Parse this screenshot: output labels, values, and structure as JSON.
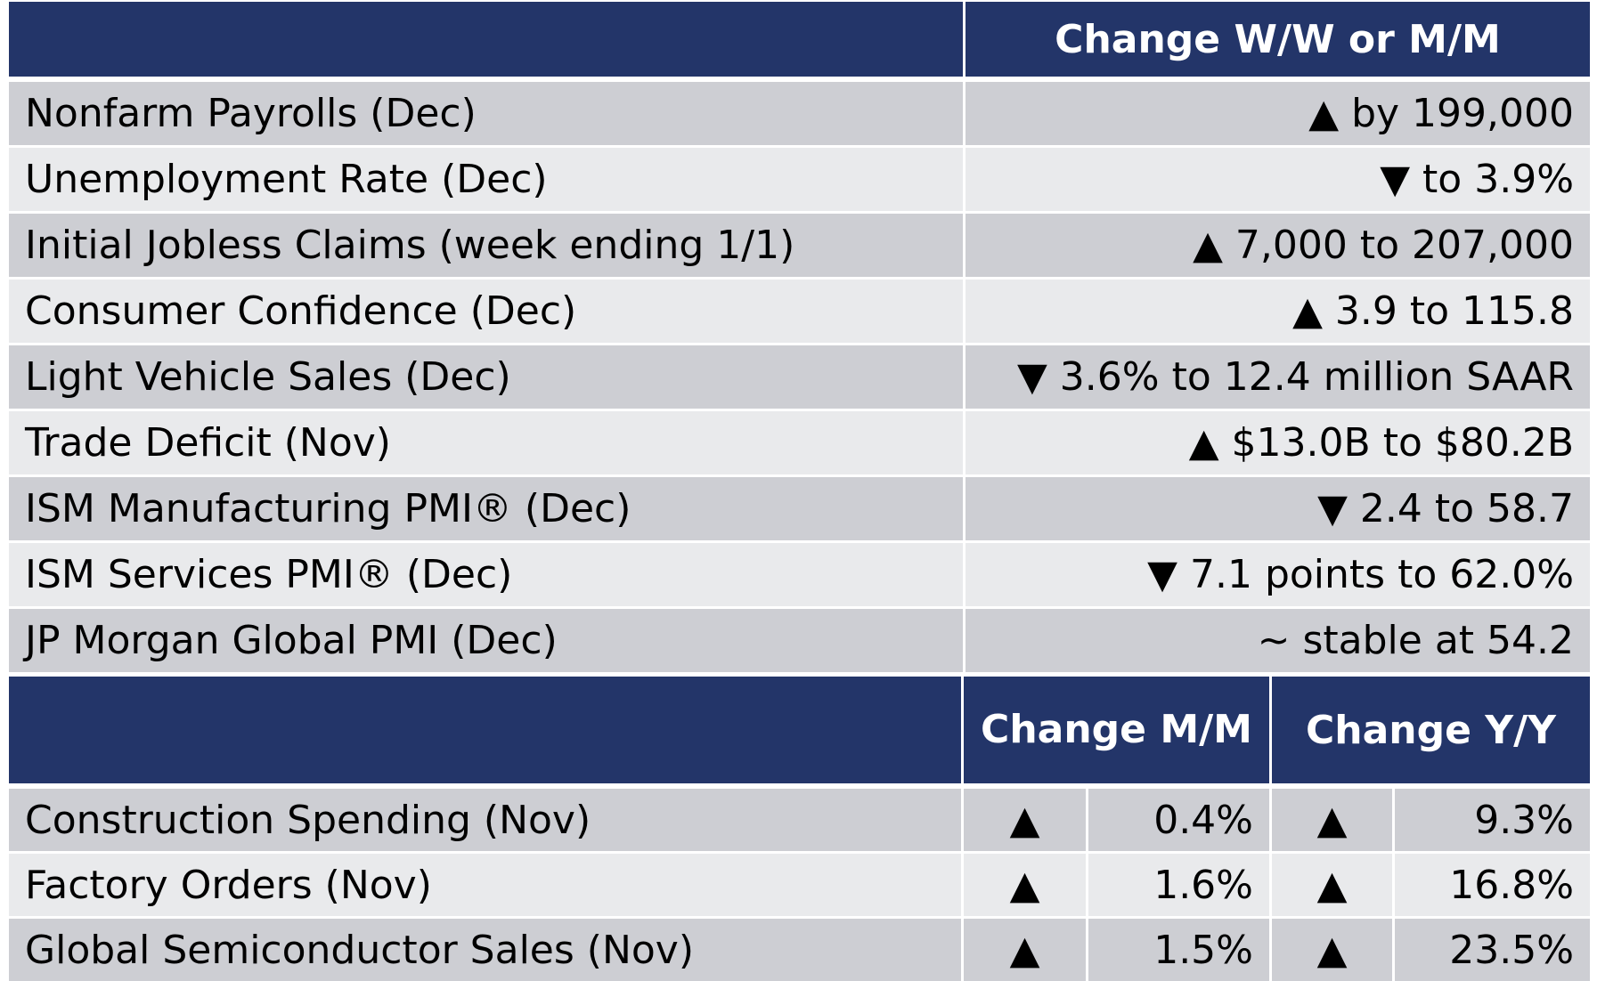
{
  "colors": {
    "header": "#233569",
    "row_dark": "#cdced3",
    "row_light": "#e9eaec"
  },
  "table1": {
    "header": "Change W/W or M/M",
    "rows": [
      {
        "label": "Nonfarm Payrolls (Dec)",
        "value": "▲ by 199,000"
      },
      {
        "label": "Unemployment Rate (Dec)",
        "value": "▼ to 3.9%"
      },
      {
        "label": "Initial Jobless Claims (week ending 1/1)",
        "value": "▲ 7,000 to 207,000"
      },
      {
        "label": "Consumer Confidence (Dec)",
        "value": "▲ 3.9 to 115.8"
      },
      {
        "label": "Light Vehicle Sales (Dec)",
        "value": "▼ 3.6% to 12.4 million SAAR"
      },
      {
        "label": "Trade Deficit (Nov)",
        "value": "▲ $13.0B to $80.2B"
      },
      {
        "label": "ISM Manufacturing PMI® (Dec)",
        "value": "▼ 2.4 to 58.7"
      },
      {
        "label": "ISM Services PMI® (Dec)",
        "value": "▼ 7.1 points to 62.0%"
      },
      {
        "label": "JP Morgan Global PMI (Dec)",
        "value": "~ stable at 54.2"
      }
    ]
  },
  "table2": {
    "header_mm": "Change M/M",
    "header_yy": "Change Y/Y",
    "rows": [
      {
        "label": "Construction Spending (Nov)",
        "mm_dir": "▲",
        "mm": "0.4%",
        "yy_dir": "▲",
        "yy": "9.3%"
      },
      {
        "label": "Factory Orders (Nov)",
        "mm_dir": "▲",
        "mm": "1.6%",
        "yy_dir": "▲",
        "yy": "16.8%"
      },
      {
        "label": "Global Semiconductor Sales (Nov)",
        "mm_dir": "▲",
        "mm": "1.5%",
        "yy_dir": "▲",
        "yy": "23.5%"
      }
    ]
  }
}
